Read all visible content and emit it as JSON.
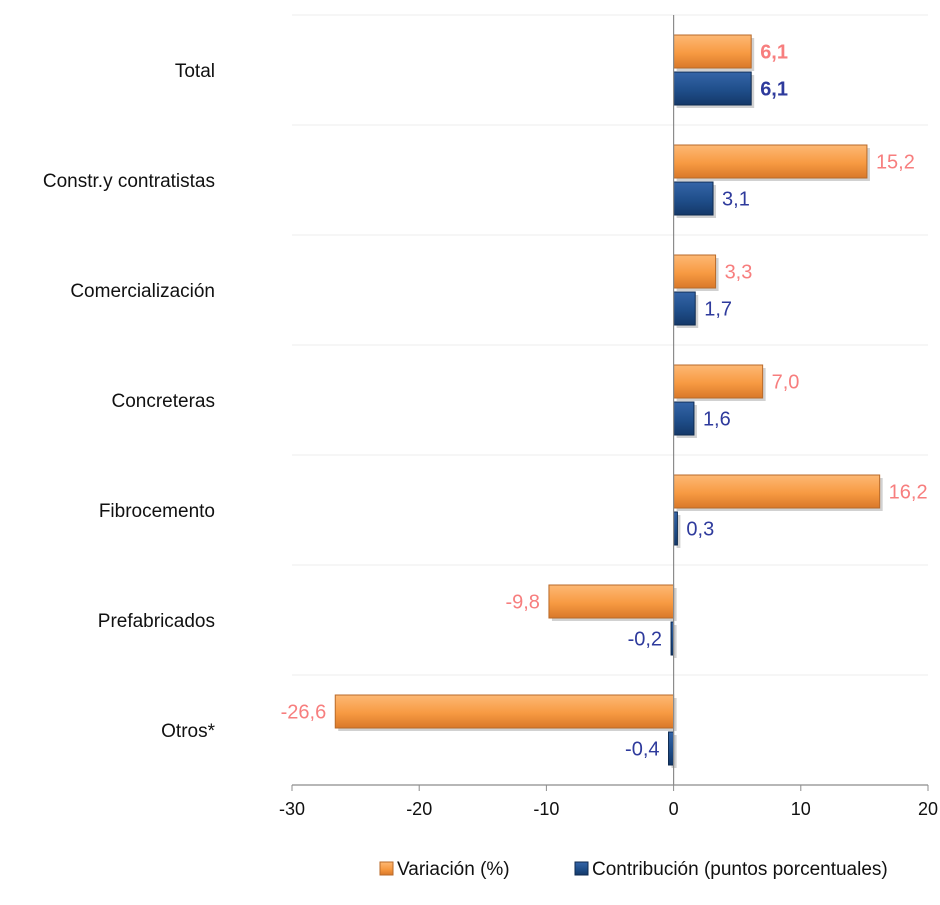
{
  "chart_data": {
    "type": "bar",
    "orientation": "horizontal",
    "categories": [
      "Total",
      "Constr.y contratistas",
      "Comercialización",
      "Concreteras",
      "Fibrocemento",
      "Prefabricados",
      "Otros*"
    ],
    "series": [
      {
        "name": "Variación (%)",
        "color": "#F79A42",
        "label_color": "#F77E7E",
        "values": [
          6.1,
          15.2,
          3.3,
          7.0,
          16.2,
          -9.8,
          -26.6
        ],
        "labels": [
          "6,1",
          "15,2",
          "3,3",
          "7,0",
          "16,2",
          "-9,8",
          "-26,6"
        ]
      },
      {
        "name": "Contribución (puntos porcentuales)",
        "color": "#1F4E8A",
        "label_color": "#2E3A9C",
        "values": [
          6.1,
          3.1,
          1.7,
          1.6,
          0.3,
          -0.2,
          -0.4
        ],
        "labels": [
          "6,1",
          "3,1",
          "1,7",
          "1,6",
          "0,3",
          "-0,2",
          "-0,4"
        ]
      }
    ],
    "xlim": [
      -30,
      20
    ],
    "xticks": [
      -30,
      -20,
      -10,
      0,
      10,
      20
    ],
    "xtick_labels": [
      "-30",
      "-20",
      "-10",
      "0",
      "10",
      "20"
    ],
    "bold_labels_category": "Total",
    "grid": "horizontal separators between categories",
    "legend_position": "bottom"
  }
}
